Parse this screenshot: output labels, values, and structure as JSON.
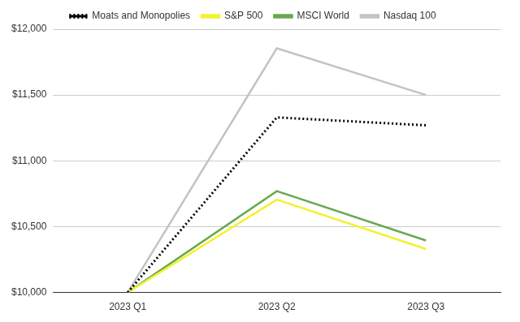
{
  "chart_data": {
    "type": "line",
    "categories": [
      "2023 Q1",
      "2023 Q2",
      "2023 Q3"
    ],
    "series": [
      {
        "name": "Moats and Monopolies",
        "color": "#000000",
        "line_style": "dotted",
        "values": [
          10000,
          11330,
          11270
        ]
      },
      {
        "name": "S&P 500",
        "color": "#f2f230",
        "line_style": "solid",
        "values": [
          10000,
          10705,
          10330
        ]
      },
      {
        "name": "MSCI World",
        "color": "#6aa84f",
        "line_style": "solid",
        "values": [
          10000,
          10770,
          10395
        ]
      },
      {
        "name": "Nasdaq 100",
        "color": "#c3c3c3",
        "line_style": "solid",
        "values": [
          10000,
          11855,
          11500
        ]
      }
    ],
    "ylim": [
      10000,
      12000
    ],
    "yticks": [
      {
        "value": 10000,
        "label": "$10,000"
      },
      {
        "value": 10500,
        "label": "$10,500"
      },
      {
        "value": 11000,
        "label": "$11,000"
      },
      {
        "value": 11500,
        "label": "$11,500"
      },
      {
        "value": 12000,
        "label": "$12,000"
      }
    ],
    "grid": true,
    "legend": "top"
  }
}
